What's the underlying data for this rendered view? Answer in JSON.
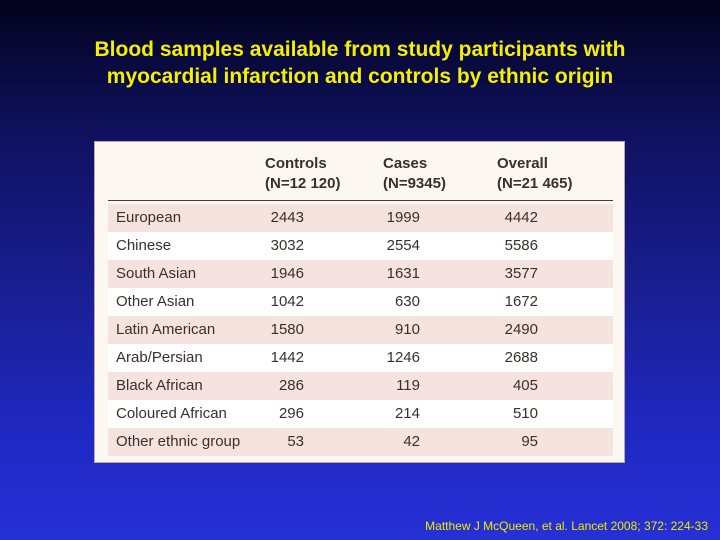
{
  "slide": {
    "title_line1": "Blood samples available from study participants with",
    "title_line2": "myocardial infarction and controls by ethnic origin",
    "citation": "Matthew J McQueen, et al. Lancet 2008; 372: 224-33"
  },
  "table": {
    "columns": [
      {
        "name": "Controls",
        "n": "(N=12 120)"
      },
      {
        "name": "Cases",
        "n": "(N=9345)"
      },
      {
        "name": "Overall",
        "n": "(N=21 465)"
      }
    ],
    "rows": [
      {
        "group": "European",
        "controls": "2443",
        "cases": "1999",
        "overall": "4442"
      },
      {
        "group": "Chinese",
        "controls": "3032",
        "cases": "2554",
        "overall": "5586"
      },
      {
        "group": "South Asian",
        "controls": "1946",
        "cases": "1631",
        "overall": "3577"
      },
      {
        "group": "Other Asian",
        "controls": "1042",
        "cases": "630",
        "overall": "1672"
      },
      {
        "group": "Latin American",
        "controls": "1580",
        "cases": "910",
        "overall": "2490"
      },
      {
        "group": "Arab/Persian",
        "controls": "1442",
        "cases": "1246",
        "overall": "2688"
      },
      {
        "group": "Black African",
        "controls": "286",
        "cases": "119",
        "overall": "405"
      },
      {
        "group": "Coloured African",
        "controls": "296",
        "cases": "214",
        "overall": "510"
      },
      {
        "group": "Other ethnic group",
        "controls": "53",
        "cases": "42",
        "overall": "95"
      }
    ]
  },
  "colors": {
    "title": "#f4f000",
    "table_background": "#fdf7f1",
    "row_tint": "#f6e3df"
  }
}
